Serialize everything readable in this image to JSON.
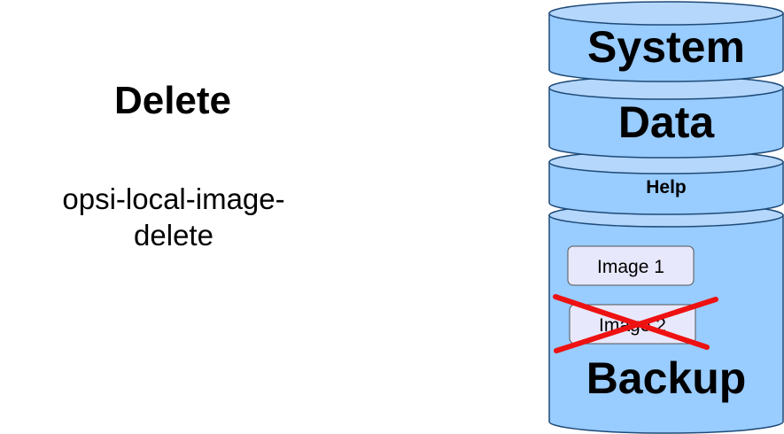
{
  "left_panel": {
    "title": "Delete",
    "command_line1": "opsi-local-image-",
    "command_line2": "delete"
  },
  "disk": {
    "partitions": {
      "system": "System",
      "data": "Data",
      "help": "Help",
      "backup": "Backup"
    },
    "images": [
      {
        "label": "Image 1",
        "deleted": false
      },
      {
        "label": "Image 2",
        "deleted": true
      }
    ]
  },
  "colors": {
    "cylinder_fill": "#99ccff",
    "cylinder_top": "#b4d7fb",
    "cylinder_stroke": "#1e4a78",
    "image_fill": "#e8e8fc",
    "image_stroke": "#555555",
    "cross": "#ee1111"
  }
}
